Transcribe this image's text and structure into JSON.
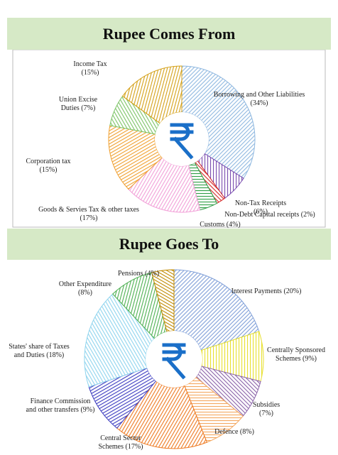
{
  "chart_data": [
    {
      "type": "donut",
      "title": "Rupee Comes From",
      "categories": [
        "Borrowing and Other Liabilities",
        "Non-Tax Receipts",
        "Non-Debt Capital receipts",
        "Customs",
        "Goods & Servies Tax & other taxes",
        "Corporation tax",
        "Union Excise Duties",
        "Income Tax"
      ],
      "values": [
        34,
        6,
        2,
        4,
        17,
        15,
        7,
        15
      ],
      "value_labels": [
        "(34%)",
        "(6%)",
        "(2%)",
        "(4%)",
        "(17%)",
        "(15%)",
        "(7%)",
        "(15%)"
      ],
      "colors": [
        "#8fb8e0",
        "#7b4fb0",
        "#d62828",
        "#2e9e45",
        "#f2a0d8",
        "#f0a030",
        "#7cc466",
        "#d4a017"
      ]
    },
    {
      "type": "donut",
      "title": "Rupee Goes To",
      "categories": [
        "Interest Payments",
        "Centrally Sponsored Schemes",
        "Subsidies",
        "Defence",
        "Central Sector Schemes",
        "Finance Commission and other transfers",
        "States' share of Taxes and Duties",
        "Other Expenditure",
        "Pensions"
      ],
      "values": [
        20,
        9,
        7,
        8,
        17,
        9,
        18,
        8,
        4
      ],
      "value_labels": [
        "(20%)",
        "(9%)",
        "(7%)",
        "(8%)",
        "(17%)",
        "(9%)",
        "(18%)",
        "(8%)",
        "(4%)"
      ],
      "colors": [
        "#7f9fd8",
        "#e8e030",
        "#8a62a8",
        "#f4a860",
        "#ee7a22",
        "#3b3bc0",
        "#8fd4ee",
        "#4caf50",
        "#c08a00"
      ]
    }
  ]
}
